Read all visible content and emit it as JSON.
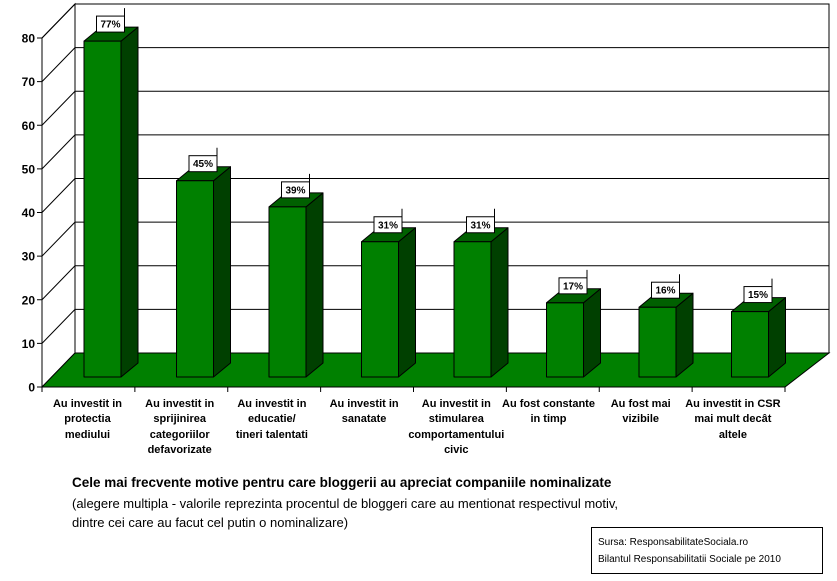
{
  "chart_data": {
    "type": "bar",
    "three_d": true,
    "categories": [
      "Au investit in\nprotectia\nmediului",
      "Au investit in\nsprijinirea\ncategoriilor\ndefavorizate",
      "Au investit in\neducatie/\ntineri talentati",
      "Au investit in\nsanatate",
      "Au investit in\nstimularea\ncomportamentului\ncivic",
      "Au fost constante\nin timp",
      "Au fost mai\nvizibile",
      "Au investit in CSR\nmai mult decât\naltele"
    ],
    "values": [
      77,
      45,
      39,
      31,
      31,
      17,
      16,
      15
    ],
    "data_labels": [
      "77%",
      "45%",
      "39%",
      "31%",
      "31%",
      "17%",
      "16%",
      "15%"
    ],
    "y_ticks": [
      0,
      10,
      20,
      30,
      40,
      50,
      60,
      70,
      80
    ],
    "ylim": [
      0,
      80
    ],
    "grid": true,
    "title": "Cele mai frecvente motive pentru care bloggerii au apreciat companiile nominalizate",
    "subtitle": "(alegere multipla - valorile reprezinta procentul de bloggeri care au mentionat respectivul motiv,\ndintre cei care au facut cel putin o nominalizare)"
  },
  "source": {
    "line1": "Sursa: ResponsabilitateSociala.ro",
    "line2": "Bilantul Responsabilitatii Sociale pe 2010"
  },
  "colors": {
    "bar_front": "#008000",
    "bar_side": "#004000",
    "bar_top": "#006000",
    "floor": "#008000",
    "walls": "#ffffff",
    "lines": "#000000"
  }
}
